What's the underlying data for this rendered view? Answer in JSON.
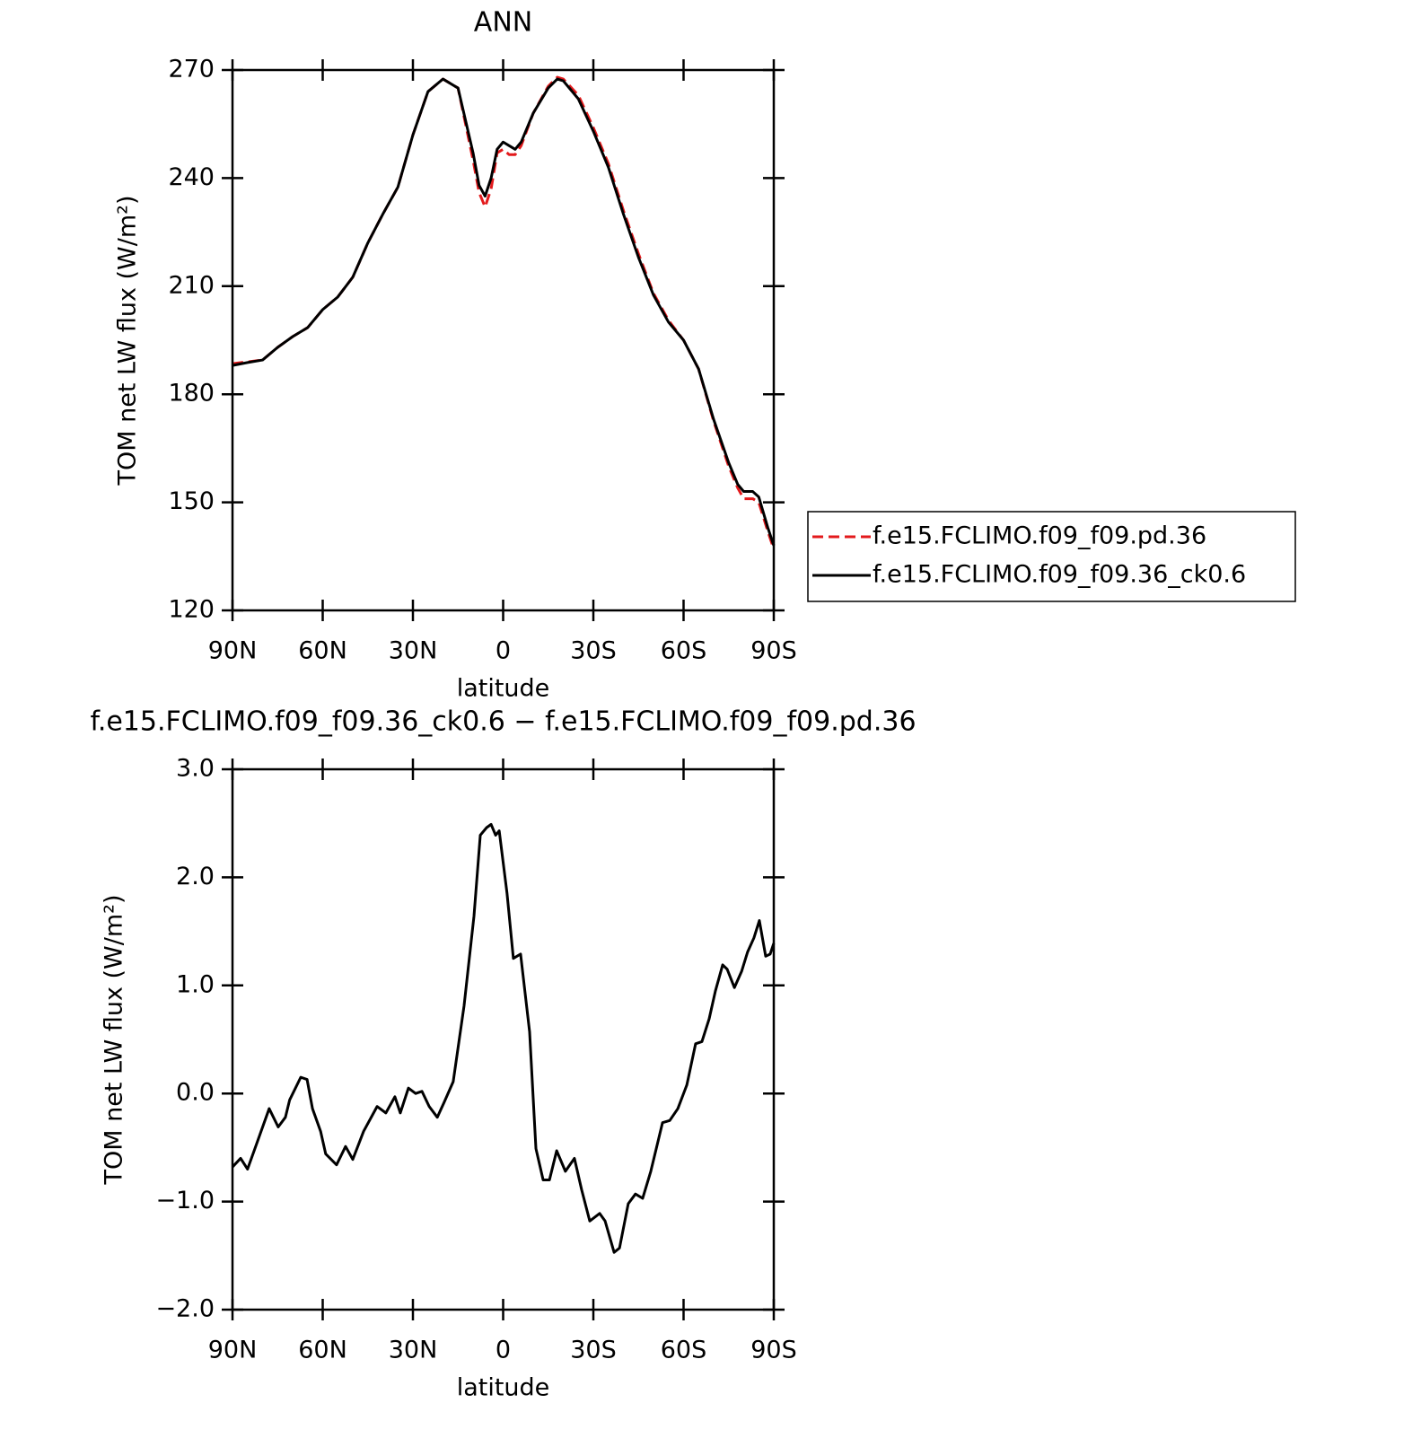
{
  "chart_data": [
    {
      "type": "line",
      "title": "ANN",
      "x_label": "latitude",
      "y_label": "TOM net LW flux (W/m²)",
      "x": [
        90,
        85,
        80,
        75,
        70,
        65,
        60,
        55,
        50,
        45,
        40,
        35,
        30,
        25,
        20,
        15,
        10,
        8,
        6,
        4,
        2,
        0,
        -2,
        -4,
        -6,
        -10,
        -15,
        -18,
        -20,
        -25,
        -30,
        -35,
        -40,
        -45,
        -50,
        -55,
        -60,
        -65,
        -70,
        -75,
        -78,
        -80,
        -83,
        -85,
        -88,
        -90
      ],
      "xlim": [
        90,
        -90
      ],
      "xticks": [
        {
          "value": 90,
          "label": "90N"
        },
        {
          "value": 60,
          "label": "60N"
        },
        {
          "value": 30,
          "label": "30N"
        },
        0,
        {
          "value": -30,
          "label": "30S"
        },
        {
          "value": -60,
          "label": "60S"
        },
        {
          "value": -90,
          "label": "90S"
        }
      ],
      "ylim": [
        120,
        270
      ],
      "yticks": [
        120,
        150,
        180,
        210,
        240,
        270
      ],
      "legend": "right",
      "series": [
        {
          "name": "f.e15.FCLIMO.f09_f09.pd.36",
          "color": "#e31a1c",
          "line_style": "dashed",
          "values": [
            188.5,
            189,
            189.5,
            193,
            196,
            198.5,
            203.5,
            207,
            212.5,
            222,
            230,
            237.5,
            252,
            264,
            267.5,
            265,
            245,
            236,
            232,
            237,
            247,
            248,
            246.5,
            246.5,
            249,
            258,
            265.5,
            268,
            267.5,
            263,
            254,
            244,
            231,
            219,
            208,
            200.5,
            195,
            187,
            172.5,
            160,
            154,
            151,
            151,
            150,
            142,
            137
          ]
        },
        {
          "name": "f.e15.FCLIMO.f09_f09.36_ck0.6",
          "color": "#000000",
          "line_style": "solid",
          "values": [
            188,
            188.8,
            189.5,
            193,
            196,
            198.5,
            203.5,
            207,
            212.5,
            222,
            230,
            237.5,
            252,
            264,
            267.5,
            265,
            247,
            238,
            235,
            240,
            248,
            250,
            249,
            248,
            250,
            258,
            265,
            267.5,
            267,
            262,
            253,
            243,
            230,
            218,
            207.5,
            200,
            195,
            187,
            173,
            161,
            155,
            153,
            153,
            151.5,
            143,
            138
          ]
        }
      ]
    },
    {
      "type": "line",
      "title": "f.e15.FCLIMO.f09_f09.36_ck0.6 − f.e15.FCLIMO.f09_f09.pd.36",
      "x_label": "latitude",
      "y_label": "TOM net LW flux (W/m²)",
      "x": [
        90,
        87.3,
        85,
        81,
        77.8,
        74.8,
        72.4,
        71,
        67.3,
        65.2,
        63.4,
        60.7,
        59,
        55.4,
        52.4,
        50,
        46.4,
        41.9,
        39,
        36,
        34.2,
        31.5,
        29.1,
        27,
        24.6,
        21.9,
        19.6,
        16.6,
        13,
        9.7,
        7.6,
        5.5,
        4,
        2.5,
        1.3,
        -1.3,
        -3.4,
        -5.8,
        -8.8,
        -10.9,
        -13.3,
        -15.4,
        -17.8,
        -20.7,
        -23.7,
        -26.1,
        -28.8,
        -32.1,
        -33.9,
        -36.9,
        -38.7,
        -41.6,
        -44,
        -46.4,
        -49.1,
        -53,
        -55.4,
        -58.1,
        -61.1,
        -64,
        -66.1,
        -68.5,
        -70.6,
        -73,
        -74.5,
        -76.9,
        -79.3,
        -81.3,
        -83.4,
        -85.2,
        -87.3,
        -88.8,
        -90
      ],
      "xlim": [
        90,
        -90
      ],
      "xticks": [
        {
          "value": 90,
          "label": "90N"
        },
        {
          "value": 60,
          "label": "60N"
        },
        {
          "value": 30,
          "label": "30N"
        },
        0,
        {
          "value": -30,
          "label": "30S"
        },
        {
          "value": -60,
          "label": "60S"
        },
        {
          "value": -90,
          "label": "90S"
        }
      ],
      "ylim": [
        -2,
        3
      ],
      "yticks": [
        {
          "value": -2,
          "label": "−2.0"
        },
        {
          "value": -1,
          "label": "−1.0"
        },
        {
          "value": 0,
          "label": "0.0"
        },
        {
          "value": 1,
          "label": "1.0"
        },
        {
          "value": 2,
          "label": "2.0"
        },
        {
          "value": 3,
          "label": "3.0"
        }
      ],
      "series": [
        {
          "color": "#000000",
          "line_style": "solid",
          "values": [
            -0.68,
            -0.6,
            -0.7,
            -0.39,
            -0.14,
            -0.31,
            -0.22,
            -0.06,
            0.15,
            0.13,
            -0.14,
            -0.35,
            -0.56,
            -0.66,
            -0.49,
            -0.61,
            -0.35,
            -0.12,
            -0.18,
            -0.03,
            -0.18,
            0.05,
            0,
            0.02,
            -0.12,
            -0.22,
            -0.08,
            0.11,
            0.81,
            1.64,
            2.39,
            2.46,
            2.49,
            2.39,
            2.43,
            1.85,
            1.25,
            1.29,
            0.57,
            -0.51,
            -0.8,
            -0.8,
            -0.53,
            -0.72,
            -0.6,
            -0.89,
            -1.18,
            -1.11,
            -1.18,
            -1.47,
            -1.43,
            -1.02,
            -0.93,
            -0.97,
            -0.72,
            -0.27,
            -0.25,
            -0.14,
            0.08,
            0.46,
            0.48,
            0.69,
            0.95,
            1.19,
            1.15,
            0.98,
            1.13,
            1.31,
            1.44,
            1.6,
            1.27,
            1.29,
            1.39
          ]
        }
      ]
    }
  ]
}
